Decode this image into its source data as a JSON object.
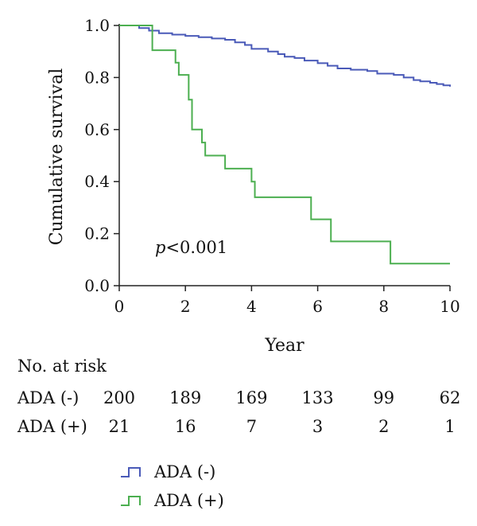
{
  "chart_data": {
    "type": "line",
    "step": true,
    "xlabel": "Year",
    "ylabel": "Cumulative survival",
    "xlim": [
      0,
      10
    ],
    "ylim": [
      0,
      1
    ],
    "xticks": [
      "0",
      "2",
      "4",
      "6",
      "8",
      "10"
    ],
    "yticks": [
      "0.0",
      "0.2",
      "0.4",
      "0.6",
      "0.8",
      "1.0"
    ],
    "annotation": {
      "italic": "p",
      "rest": "<0.001"
    },
    "grid": false,
    "legend_position": "bottom",
    "series": [
      {
        "name": "ADA (-)",
        "color": "#4a5ab8",
        "points": [
          [
            0,
            1.0
          ],
          [
            0.6,
            0.99
          ],
          [
            0.9,
            0.98
          ],
          [
            1.2,
            0.97
          ],
          [
            1.6,
            0.965
          ],
          [
            2.0,
            0.96
          ],
          [
            2.4,
            0.955
          ],
          [
            2.8,
            0.95
          ],
          [
            3.2,
            0.945
          ],
          [
            3.5,
            0.935
          ],
          [
            3.8,
            0.925
          ],
          [
            4.0,
            0.91
          ],
          [
            4.5,
            0.9
          ],
          [
            4.8,
            0.89
          ],
          [
            5.0,
            0.88
          ],
          [
            5.3,
            0.875
          ],
          [
            5.6,
            0.865
          ],
          [
            6.0,
            0.855
          ],
          [
            6.3,
            0.845
          ],
          [
            6.6,
            0.835
          ],
          [
            7.0,
            0.83
          ],
          [
            7.5,
            0.825
          ],
          [
            7.8,
            0.815
          ],
          [
            8.3,
            0.81
          ],
          [
            8.6,
            0.8
          ],
          [
            8.9,
            0.79
          ],
          [
            9.1,
            0.785
          ],
          [
            9.4,
            0.78
          ],
          [
            9.6,
            0.775
          ],
          [
            9.8,
            0.77
          ],
          [
            10.0,
            0.765
          ]
        ]
      },
      {
        "name": "ADA (+)",
        "color": "#4caf50",
        "points": [
          [
            0,
            1.0
          ],
          [
            1.0,
            0.905
          ],
          [
            1.7,
            0.857
          ],
          [
            1.8,
            0.81
          ],
          [
            2.1,
            0.715
          ],
          [
            2.2,
            0.6
          ],
          [
            2.5,
            0.55
          ],
          [
            2.6,
            0.5
          ],
          [
            3.2,
            0.45
          ],
          [
            4.0,
            0.4
          ],
          [
            4.1,
            0.34
          ],
          [
            5.8,
            0.255
          ],
          [
            6.4,
            0.17
          ],
          [
            8.2,
            0.085
          ],
          [
            10.0,
            0.085
          ]
        ]
      }
    ]
  },
  "risk_table": {
    "title": "No. at risk",
    "columns_x": [
      0,
      2,
      4,
      6,
      8,
      10
    ],
    "rows": [
      {
        "label": "ADA (-)",
        "values": [
          "200",
          "189",
          "169",
          "133",
          "99",
          "62"
        ]
      },
      {
        "label": "ADA (+)",
        "values": [
          "21",
          "16",
          "7",
          "3",
          "2",
          "1"
        ]
      }
    ]
  }
}
